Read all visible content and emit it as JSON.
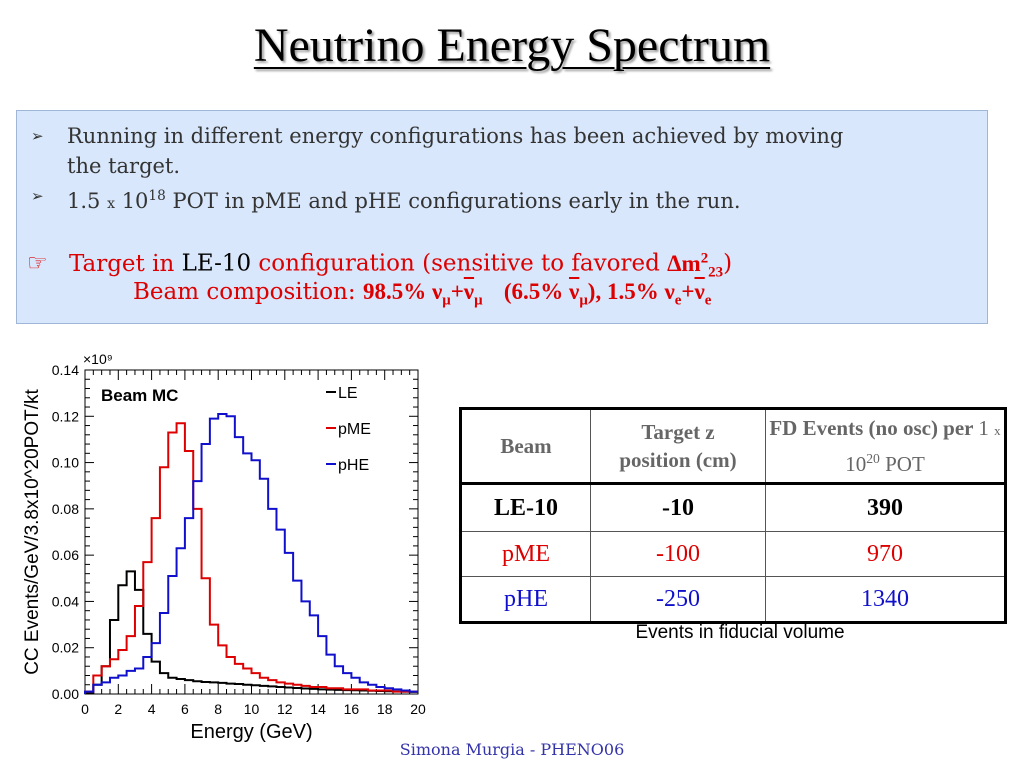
{
  "slide": {
    "title": "Neutrino Energy Spectrum",
    "footer": "Simona Murgia - PHENO06"
  },
  "bullets": {
    "b1_line1": "Running in different energy configurations has been achieved by moving",
    "b1_line2": "the target.",
    "b2_pre": "1.5",
    "b2_x": "x",
    "b2_base": "10",
    "b2_exp": "18",
    "b2_post": "POT in pME and pHE configurations early in the run.",
    "h_target": "Target in",
    "h_le": "LE-10",
    "h_config": "configuration",
    "h_sens": "(sensitive to favored",
    "h_dm": "Δm",
    "h_dm_sup": "2",
    "h_dm_sub": "23",
    "h_close": ")",
    "beam_label": "Beam composition:",
    "beam_main": "98.5% ν",
    "beam_sub_mu": "μ",
    "beam_plus": "+",
    "beam_nu": "ν",
    "beam_frac": "(6.5%",
    "beam_frac_close": "),",
    "beam_e_pct": "1.5% ν",
    "beam_sub_e": "e",
    "bullet_marker": "➢",
    "hand_marker": "☞"
  },
  "table": {
    "headers": [
      "Beam",
      "Target z position (cm)",
      "FD Events (no osc) per"
    ],
    "header_pot": {
      "pre": "1",
      "x": "x",
      "base": "10",
      "exp": "20",
      "post": "POT"
    },
    "rows": [
      {
        "beam": "LE-10",
        "z": "-10",
        "events": "390"
      },
      {
        "beam": "pME",
        "z": "-100",
        "events": "970"
      },
      {
        "beam": "pHE",
        "z": "-250",
        "events": "1340"
      }
    ],
    "caption": "Events in fiducial volume"
  },
  "chart_data": {
    "type": "line",
    "style": "histogram",
    "label": "Beam MC",
    "xlabel": "Energy (GeV)",
    "ylabel": "CC Events/GeV/3.8x10^20POT/kt",
    "multiplier": "×10⁹",
    "xlim": [
      0,
      20
    ],
    "ylim": [
      0,
      0.14
    ],
    "xticks": [
      0,
      2,
      4,
      6,
      8,
      10,
      12,
      14,
      16,
      18,
      20
    ],
    "yticks": [
      "0.00",
      "0.02",
      "0.04",
      "0.06",
      "0.08",
      "0.10",
      "0.12",
      "0.14"
    ],
    "bin_width": 0.5,
    "legend_position": "top-right",
    "series": [
      {
        "name": "LE",
        "color": "#000000",
        "values": [
          0.0005,
          0.004,
          0.012,
          0.032,
          0.047,
          0.053,
          0.045,
          0.026,
          0.014,
          0.009,
          0.007,
          0.0065,
          0.006,
          0.0055,
          0.0052,
          0.005,
          0.0048,
          0.0045,
          0.0043,
          0.004,
          0.0038,
          0.0035,
          0.0033,
          0.003,
          0.0028,
          0.0026,
          0.0024,
          0.0022,
          0.002,
          0.0019,
          0.0018,
          0.0017,
          0.0016,
          0.0015,
          0.0014,
          0.0013,
          0.0012,
          0.0011,
          0.001,
          0.0009
        ]
      },
      {
        "name": "pME",
        "color": "#dd0000",
        "values": [
          0.001,
          0.008,
          0.012,
          0.015,
          0.019,
          0.025,
          0.038,
          0.057,
          0.076,
          0.098,
          0.113,
          0.117,
          0.105,
          0.08,
          0.05,
          0.03,
          0.021,
          0.016,
          0.013,
          0.011,
          0.009,
          0.007,
          0.006,
          0.005,
          0.0045,
          0.004,
          0.0035,
          0.003,
          0.003,
          0.0025,
          0.0025,
          0.002,
          0.002,
          0.002,
          0.0015,
          0.0015,
          0.0015,
          0.001,
          0.001,
          0.001
        ]
      },
      {
        "name": "pHE",
        "color": "#1010cc",
        "values": [
          0.001,
          0.004,
          0.005,
          0.007,
          0.008,
          0.01,
          0.011,
          0.016,
          0.022,
          0.035,
          0.051,
          0.063,
          0.076,
          0.092,
          0.108,
          0.119,
          0.121,
          0.12,
          0.111,
          0.104,
          0.101,
          0.093,
          0.08,
          0.071,
          0.061,
          0.049,
          0.04,
          0.034,
          0.025,
          0.017,
          0.012,
          0.009,
          0.007,
          0.005,
          0.004,
          0.003,
          0.0025,
          0.002,
          0.0015,
          0.001
        ]
      }
    ]
  }
}
